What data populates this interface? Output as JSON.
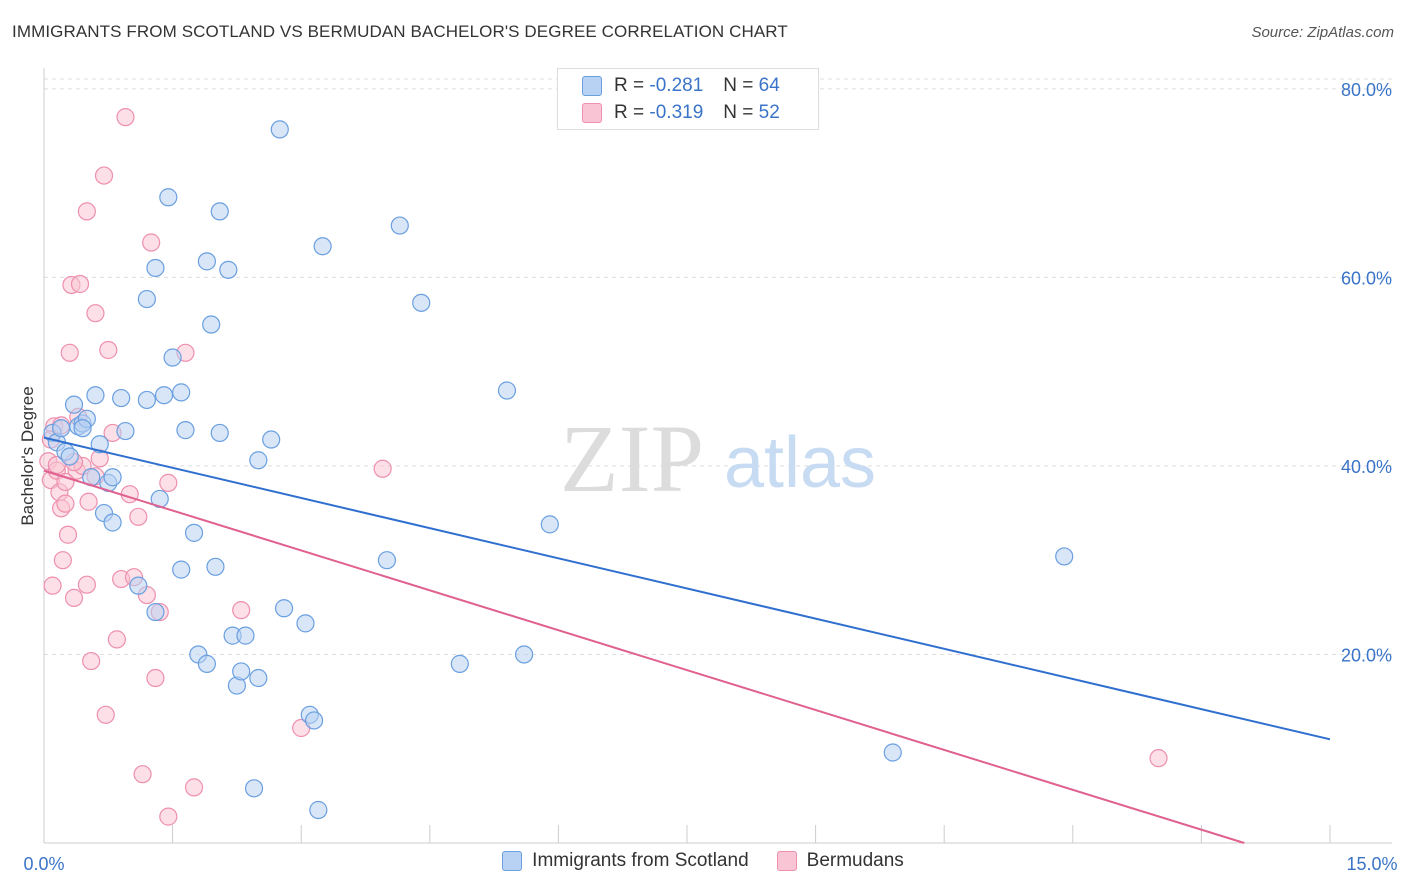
{
  "title": "IMMIGRANTS FROM SCOTLAND VS BERMUDAN BACHELOR'S DEGREE CORRELATION CHART",
  "source": "Source: ZipAtlas.com",
  "watermark": {
    "zip": "ZIP",
    "atlas": "atlas"
  },
  "legend_top": {
    "rows": [
      {
        "r_label": "R =",
        "r_value": "-0.281",
        "n_label": "N =",
        "n_value": "64"
      },
      {
        "r_label": "R =",
        "r_value": "-0.319",
        "n_label": "N =",
        "n_value": "52"
      }
    ]
  },
  "colors": {
    "scotland_fill": "#b8d2f3",
    "scotland_stroke": "#6a9fe0",
    "scotland_line": "#2f6fcf",
    "bermudan_fill": "#f9c4d4",
    "bermudan_stroke": "#ee8fae",
    "bermudan_line": "#e0608f",
    "axis_label": "#3a74c8",
    "grid": "#dddddd"
  },
  "chart_data": {
    "type": "scatter",
    "ylabel": "Bachelor's Degree",
    "x_tick_labels": [
      "0.0%",
      "15.0%"
    ],
    "y_tick_labels": [
      "80.0%",
      "60.0%",
      "40.0%",
      "20.0%"
    ],
    "xlim": [
      0,
      15
    ],
    "ylim": [
      0,
      82
    ],
    "series": [
      {
        "name": "Immigrants from Scotland",
        "trend": {
          "x1": 0,
          "y1": 43.0,
          "x2": 15,
          "y2": 11.0
        },
        "points": [
          [
            0.1,
            43.5
          ],
          [
            0.15,
            42.5
          ],
          [
            0.2,
            44
          ],
          [
            0.25,
            41.5
          ],
          [
            0.35,
            46.5
          ],
          [
            0.4,
            44.2
          ],
          [
            0.45,
            44.5
          ],
          [
            0.5,
            45
          ],
          [
            0.6,
            47.5
          ],
          [
            0.65,
            42.3
          ],
          [
            0.75,
            38.2
          ],
          [
            0.8,
            38.8
          ],
          [
            0.9,
            47.2
          ],
          [
            0.95,
            43.7
          ],
          [
            1.1,
            27.3
          ],
          [
            1.2,
            47
          ],
          [
            1.3,
            24.5
          ],
          [
            1.35,
            36.5
          ],
          [
            1.4,
            47.5
          ],
          [
            1.45,
            68.5
          ],
          [
            1.5,
            51.5
          ],
          [
            1.6,
            47.8
          ],
          [
            1.65,
            43.8
          ],
          [
            1.75,
            32.9
          ],
          [
            1.8,
            20
          ],
          [
            1.9,
            19
          ],
          [
            1.9,
            61.7
          ],
          [
            1.95,
            55
          ],
          [
            2.0,
            29.3
          ],
          [
            2.05,
            43.5
          ],
          [
            2.05,
            67
          ],
          [
            2.15,
            60.8
          ],
          [
            2.2,
            22
          ],
          [
            2.25,
            16.7
          ],
          [
            2.3,
            18.2
          ],
          [
            2.35,
            22
          ],
          [
            2.45,
            5.8
          ],
          [
            2.5,
            17.5
          ],
          [
            2.5,
            40.6
          ],
          [
            2.65,
            42.8
          ],
          [
            2.75,
            75.7
          ],
          [
            2.8,
            24.9
          ],
          [
            3.05,
            23.3
          ],
          [
            3.1,
            13.6
          ],
          [
            3.15,
            13
          ],
          [
            3.25,
            63.3
          ],
          [
            3.2,
            3.5
          ],
          [
            4.0,
            30
          ],
          [
            4.15,
            65.5
          ],
          [
            4.4,
            57.3
          ],
          [
            4.85,
            19
          ],
          [
            5.4,
            48
          ],
          [
            5.6,
            20
          ],
          [
            5.9,
            33.8
          ],
          [
            11.9,
            30.4
          ],
          [
            9.9,
            9.6
          ],
          [
            0.45,
            44
          ],
          [
            0.7,
            35
          ],
          [
            0.55,
            38.8
          ],
          [
            1.6,
            29
          ],
          [
            0.3,
            41
          ],
          [
            0.8,
            34
          ],
          [
            1.3,
            61
          ],
          [
            1.2,
            57.7
          ]
        ]
      },
      {
        "name": "Bermudans",
        "trend": {
          "x1": 0,
          "y1": 39.5,
          "x2": 14.0,
          "y2": 0
        },
        "points": [
          [
            0.05,
            40.5
          ],
          [
            0.08,
            38.5
          ],
          [
            0.1,
            27.3
          ],
          [
            0.12,
            44.2
          ],
          [
            0.15,
            39.5
          ],
          [
            0.18,
            37.2
          ],
          [
            0.2,
            35.5
          ],
          [
            0.22,
            30
          ],
          [
            0.25,
            36
          ],
          [
            0.28,
            32.7
          ],
          [
            0.3,
            52
          ],
          [
            0.32,
            59.2
          ],
          [
            0.35,
            26
          ],
          [
            0.38,
            39.5
          ],
          [
            0.4,
            45.2
          ],
          [
            0.42,
            59.3
          ],
          [
            0.45,
            40
          ],
          [
            0.5,
            67
          ],
          [
            0.52,
            36.2
          ],
          [
            0.55,
            19.3
          ],
          [
            0.6,
            56.2
          ],
          [
            0.65,
            40.8
          ],
          [
            0.7,
            70.8
          ],
          [
            0.72,
            13.6
          ],
          [
            0.75,
            52.3
          ],
          [
            0.8,
            43.5
          ],
          [
            0.85,
            21.6
          ],
          [
            0.9,
            28
          ],
          [
            0.95,
            77
          ],
          [
            1.0,
            37
          ],
          [
            1.05,
            28.2
          ],
          [
            1.1,
            34.6
          ],
          [
            1.15,
            7.3
          ],
          [
            1.2,
            26.3
          ],
          [
            1.25,
            63.7
          ],
          [
            1.3,
            17.5
          ],
          [
            1.35,
            24.5
          ],
          [
            1.45,
            2.8
          ],
          [
            1.45,
            38.2
          ],
          [
            1.65,
            52
          ],
          [
            1.75,
            5.9
          ],
          [
            2.3,
            24.7
          ],
          [
            3.0,
            12.2
          ],
          [
            3.95,
            39.7
          ],
          [
            13.0,
            9
          ],
          [
            0.15,
            40.1
          ],
          [
            0.5,
            27.4
          ],
          [
            0.25,
            38.3
          ],
          [
            0.08,
            42.8
          ],
          [
            0.35,
            40.4
          ],
          [
            0.6,
            38.9
          ],
          [
            0.2,
            44.3
          ]
        ]
      }
    ]
  },
  "legend_bottom": [
    "Immigrants from Scotland",
    "Bermudans"
  ]
}
